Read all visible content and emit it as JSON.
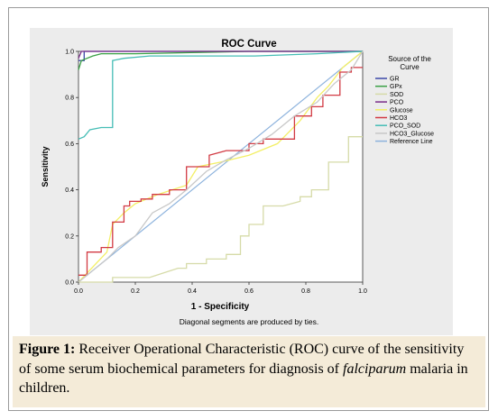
{
  "figure": {
    "label": "Figure 1:",
    "caption_pre": " Receiver Operational Characteristic (ROC) curve of the sensitivity of some serum biochemical parameters for diagnosis of ",
    "caption_italic": "falciparum",
    "caption_post": " malaria in children."
  },
  "chart_data": {
    "type": "line",
    "title": "ROC Curve",
    "xlabel": "1 - Specificity",
    "ylabel": "Sensitivity",
    "footnote": "Diagonal segments are produced by ties.",
    "xlim": [
      0,
      1
    ],
    "ylim": [
      0,
      1
    ],
    "x_ticks": [
      "0.0",
      "0.2",
      "0.4",
      "0.6",
      "0.8",
      "1.0"
    ],
    "y_ticks": [
      "0.0",
      "0.2",
      "0.4",
      "0.6",
      "0.8",
      "1.0"
    ],
    "grid": false,
    "legend_title": "Source of the Curve",
    "legend_position": "right",
    "series": [
      {
        "name": "GR",
        "color": "#3c48a8",
        "points": [
          [
            0,
            0.96
          ],
          [
            0.02,
            0.96
          ],
          [
            0.02,
            1
          ],
          [
            1,
            1
          ]
        ]
      },
      {
        "name": "GPx",
        "color": "#3aa045",
        "points": [
          [
            0,
            0.92
          ],
          [
            0.01,
            0.96
          ],
          [
            0.05,
            0.98
          ],
          [
            0.08,
            0.99
          ],
          [
            0.12,
            0.99
          ],
          [
            0.2,
            0.99
          ],
          [
            0.6,
            1
          ],
          [
            1,
            1
          ]
        ]
      },
      {
        "name": "SOD",
        "color": "#d6dba8",
        "points": [
          [
            0,
            0
          ],
          [
            0.12,
            0
          ],
          [
            0.12,
            0.02
          ],
          [
            0.25,
            0.02
          ],
          [
            0.3,
            0.04
          ],
          [
            0.35,
            0.06
          ],
          [
            0.38,
            0.06
          ],
          [
            0.38,
            0.08
          ],
          [
            0.45,
            0.08
          ],
          [
            0.45,
            0.1
          ],
          [
            0.52,
            0.1
          ],
          [
            0.52,
            0.12
          ],
          [
            0.57,
            0.12
          ],
          [
            0.57,
            0.2
          ],
          [
            0.6,
            0.2
          ],
          [
            0.6,
            0.25
          ],
          [
            0.65,
            0.25
          ],
          [
            0.65,
            0.33
          ],
          [
            0.72,
            0.33
          ],
          [
            0.78,
            0.35
          ],
          [
            0.78,
            0.37
          ],
          [
            0.82,
            0.37
          ],
          [
            0.82,
            0.4
          ],
          [
            0.88,
            0.4
          ],
          [
            0.88,
            0.52
          ],
          [
            0.95,
            0.52
          ],
          [
            0.95,
            0.63
          ],
          [
            1,
            0.63
          ]
        ]
      },
      {
        "name": "PCO",
        "color": "#7a2d8a",
        "points": [
          [
            0,
            0.97
          ],
          [
            0.01,
            1
          ],
          [
            1,
            1
          ]
        ]
      },
      {
        "name": "Glucose",
        "color": "#f3ef66",
        "points": [
          [
            0,
            0
          ],
          [
            0.1,
            0.13
          ],
          [
            0.12,
            0.25
          ],
          [
            0.16,
            0.3
          ],
          [
            0.2,
            0.34
          ],
          [
            0.24,
            0.36
          ],
          [
            0.28,
            0.38
          ],
          [
            0.33,
            0.4
          ],
          [
            0.38,
            0.42
          ],
          [
            0.42,
            0.5
          ],
          [
            0.5,
            0.52
          ],
          [
            0.6,
            0.55
          ],
          [
            0.7,
            0.6
          ],
          [
            0.78,
            0.7
          ],
          [
            0.84,
            0.8
          ],
          [
            0.88,
            0.85
          ],
          [
            0.93,
            0.93
          ],
          [
            1,
            1
          ]
        ]
      },
      {
        "name": "HCO3",
        "color": "#d23a43",
        "points": [
          [
            0,
            0.03
          ],
          [
            0.03,
            0.03
          ],
          [
            0.03,
            0.13
          ],
          [
            0.08,
            0.13
          ],
          [
            0.08,
            0.15
          ],
          [
            0.12,
            0.15
          ],
          [
            0.12,
            0.26
          ],
          [
            0.16,
            0.26
          ],
          [
            0.16,
            0.33
          ],
          [
            0.18,
            0.33
          ],
          [
            0.18,
            0.35
          ],
          [
            0.22,
            0.35
          ],
          [
            0.22,
            0.36
          ],
          [
            0.26,
            0.36
          ],
          [
            0.26,
            0.38
          ],
          [
            0.32,
            0.38
          ],
          [
            0.32,
            0.4
          ],
          [
            0.38,
            0.4
          ],
          [
            0.38,
            0.5
          ],
          [
            0.46,
            0.5
          ],
          [
            0.46,
            0.55
          ],
          [
            0.52,
            0.57
          ],
          [
            0.6,
            0.57
          ],
          [
            0.6,
            0.6
          ],
          [
            0.65,
            0.6
          ],
          [
            0.65,
            0.62
          ],
          [
            0.76,
            0.62
          ],
          [
            0.76,
            0.72
          ],
          [
            0.82,
            0.72
          ],
          [
            0.82,
            0.76
          ],
          [
            0.86,
            0.76
          ],
          [
            0.86,
            0.81
          ],
          [
            0.92,
            0.81
          ],
          [
            0.92,
            0.91
          ],
          [
            0.96,
            0.91
          ],
          [
            0.96,
            0.93
          ],
          [
            1,
            0.93
          ]
        ]
      },
      {
        "name": "PCO_SOD",
        "color": "#45bdb5",
        "points": [
          [
            0,
            0.62
          ],
          [
            0.02,
            0.63
          ],
          [
            0.04,
            0.66
          ],
          [
            0.08,
            0.67
          ],
          [
            0.12,
            0.67
          ],
          [
            0.12,
            0.96
          ],
          [
            0.16,
            0.97
          ],
          [
            0.25,
            0.98
          ],
          [
            0.62,
            0.98
          ],
          [
            0.84,
            0.99
          ],
          [
            1,
            1
          ]
        ]
      },
      {
        "name": "HCO3_Glucose",
        "color": "#c8c8c8",
        "points": [
          [
            0,
            0
          ],
          [
            0.06,
            0.06
          ],
          [
            0.1,
            0.1
          ],
          [
            0.14,
            0.15
          ],
          [
            0.2,
            0.2
          ],
          [
            0.26,
            0.3
          ],
          [
            0.32,
            0.34
          ],
          [
            0.38,
            0.4
          ],
          [
            0.45,
            0.48
          ],
          [
            0.52,
            0.53
          ],
          [
            0.6,
            0.58
          ],
          [
            0.68,
            0.64
          ],
          [
            0.76,
            0.72
          ],
          [
            0.84,
            0.78
          ],
          [
            0.9,
            0.86
          ],
          [
            0.96,
            0.92
          ],
          [
            1,
            1
          ]
        ]
      },
      {
        "name": "Reference Line",
        "color": "#8db3dd",
        "points": [
          [
            0,
            0
          ],
          [
            1,
            1
          ]
        ]
      }
    ]
  }
}
